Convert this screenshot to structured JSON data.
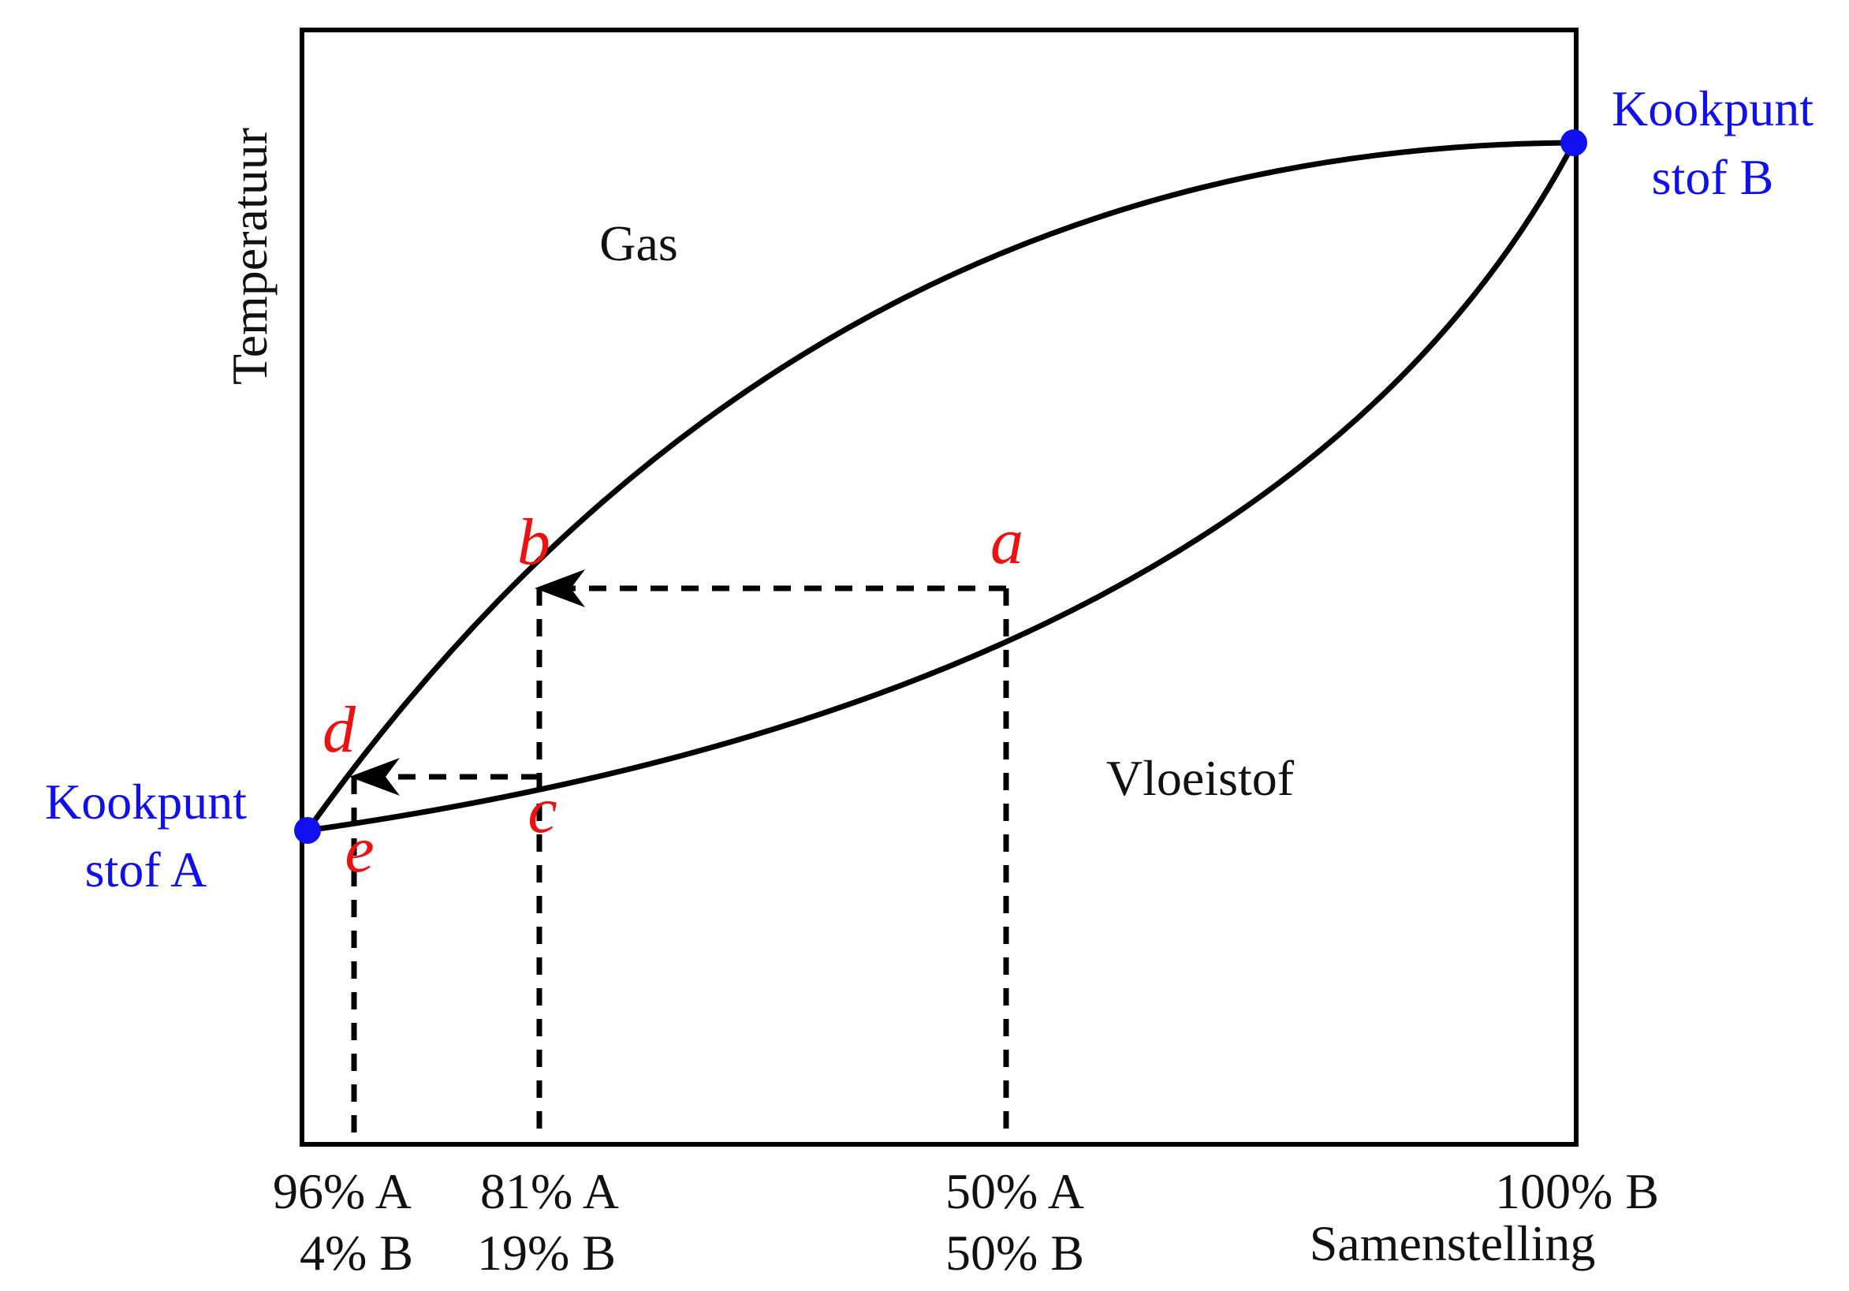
{
  "diagram": {
    "y_axis_label": "Temperatuur",
    "x_axis_label": "Samenstelling",
    "region_gas": "Gas",
    "region_liquid": "Vloeistof",
    "boiling_point_a": {
      "line1": "Kookpunt",
      "line2": "stof A"
    },
    "boiling_point_b": {
      "line1": "Kookpunt",
      "line2": "stof B"
    },
    "points": {
      "a": "a",
      "b": "b",
      "c": "c",
      "d": "d",
      "e": "e"
    },
    "ticks": [
      {
        "line1": "96% A",
        "line2": "4% B"
      },
      {
        "line1": "81% A",
        "line2": "19% B"
      },
      {
        "line1": "50% A",
        "line2": "50% B"
      },
      {
        "line1": "100% B",
        "line2": ""
      }
    ],
    "colors": {
      "curves": "#000000",
      "points_labels": "#ee1111",
      "boiling_points": "#1010ee"
    }
  }
}
